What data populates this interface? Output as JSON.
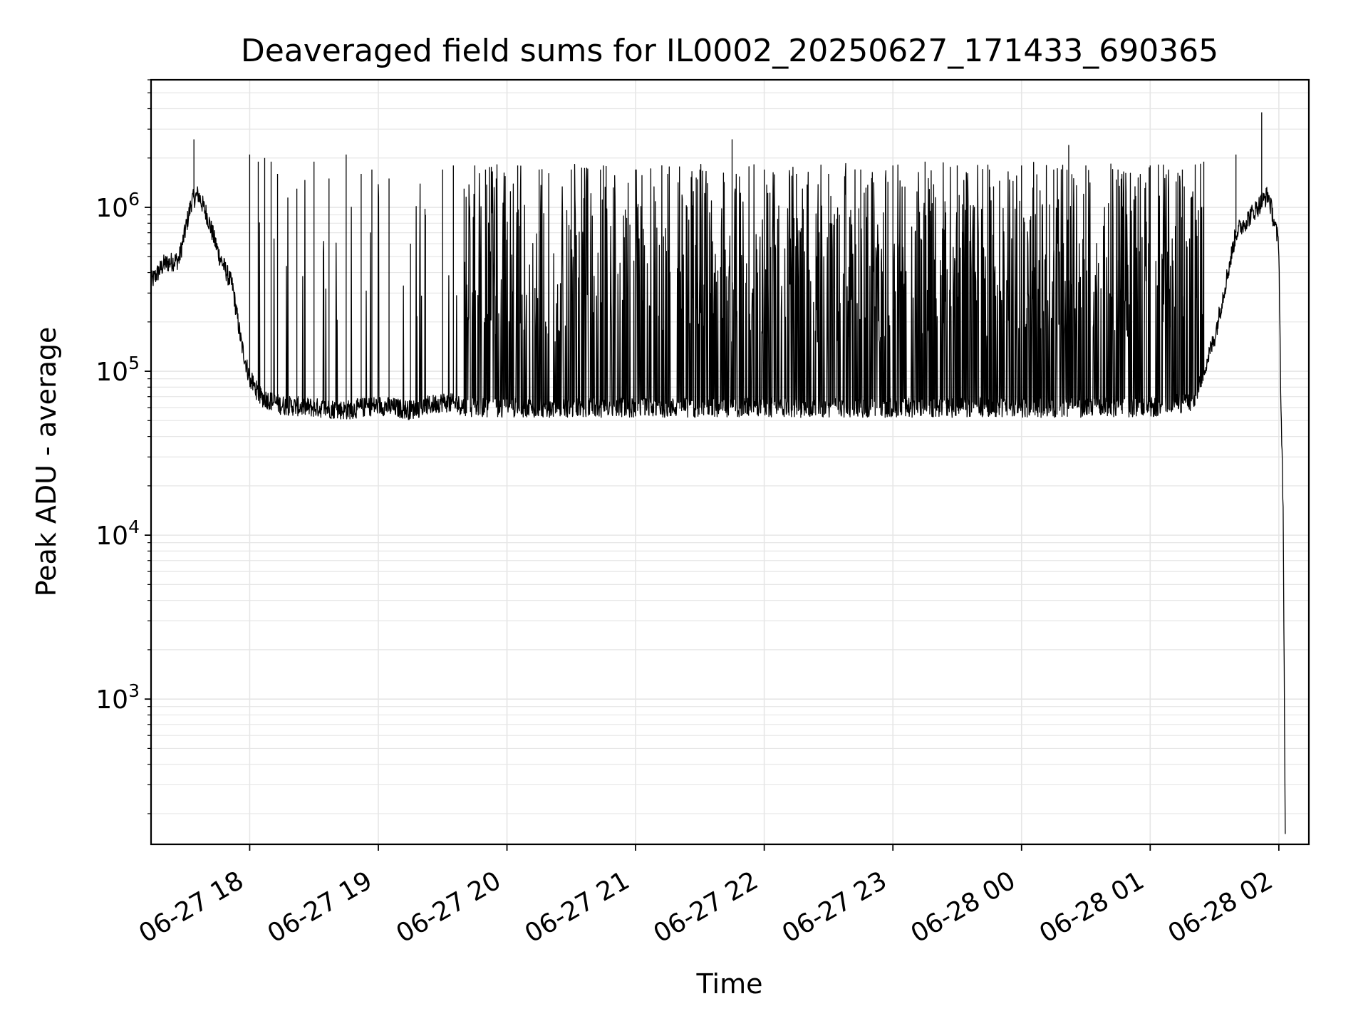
{
  "chart_data": {
    "type": "line",
    "title": "Deaveraged field sums for IL0002_20250627_171433_690365",
    "xlabel": "Time",
    "ylabel": "Peak ADU - average",
    "yscale": "log",
    "grid": true,
    "line_color": "#000000",
    "grid_color": "#e6e6e6",
    "xlim": [
      "2025-06-27 17:14",
      "2025-06-28 02:14"
    ],
    "ylim": [
      130,
      6000000
    ],
    "x_ticks": [
      {
        "value": "2025-06-27 18:00",
        "label": "06-27 18"
      },
      {
        "value": "2025-06-27 19:00",
        "label": "06-27 19"
      },
      {
        "value": "2025-06-27 20:00",
        "label": "06-27 20"
      },
      {
        "value": "2025-06-27 21:00",
        "label": "06-27 21"
      },
      {
        "value": "2025-06-27 22:00",
        "label": "06-27 22"
      },
      {
        "value": "2025-06-27 23:00",
        "label": "06-27 23"
      },
      {
        "value": "2025-06-28 00:00",
        "label": "06-28 00"
      },
      {
        "value": "2025-06-28 01:00",
        "label": "06-28 01"
      },
      {
        "value": "2025-06-28 02:00",
        "label": "06-28 02"
      }
    ],
    "y_ticks": [
      {
        "value": 1000,
        "base": "10",
        "exp": "3"
      },
      {
        "value": 10000,
        "base": "10",
        "exp": "4"
      },
      {
        "value": 100000,
        "base": "10",
        "exp": "5"
      },
      {
        "value": 1000000,
        "base": "10",
        "exp": "6"
      }
    ],
    "series": [
      {
        "x": [
          "2025-06-27 17:14",
          "2025-06-27 17:20",
          "2025-06-27 17:27",
          "2025-06-27 17:33",
          "2025-06-27 17:36",
          "2025-06-27 17:40",
          "2025-06-27 17:46",
          "2025-06-27 17:52",
          "2025-06-27 17:56",
          "2025-06-27 18:00",
          "2025-06-27 18:05",
          "2025-06-27 18:15",
          "2025-06-27 18:30",
          "2025-06-27 18:45",
          "2025-06-27 19:00",
          "2025-06-27 19:15",
          "2025-06-27 19:30",
          "2025-06-27 19:45",
          "2025-06-27 20:00",
          "2025-06-27 20:30",
          "2025-06-27 21:00",
          "2025-06-27 21:30",
          "2025-06-27 22:00",
          "2025-06-27 22:30",
          "2025-06-27 23:00",
          "2025-06-27 23:30",
          "2025-06-28 00:00",
          "2025-06-28 00:30",
          "2025-06-28 01:00",
          "2025-06-28 01:20",
          "2025-06-28 01:30",
          "2025-06-28 01:40",
          "2025-06-28 01:50",
          "2025-06-28 01:55",
          "2025-06-28 02:00",
          "2025-06-28 02:01",
          "2025-06-28 02:02",
          "2025-06-28 02:03"
        ],
        "y": [
          350000,
          450000,
          480000,
          1100000,
          1200000,
          900000,
          500000,
          330000,
          150000,
          90000,
          70000,
          62000,
          60000,
          58000,
          62000,
          58000,
          65000,
          60000,
          60000,
          60000,
          60000,
          60000,
          60000,
          60000,
          60000,
          60000,
          60000,
          60000,
          60000,
          65000,
          160000,
          700000,
          1000000,
          1200000,
          600000,
          60000,
          15000,
          150
        ],
        "spikes": [
          [
            "2025-06-27 17:34",
            2600000
          ],
          [
            "2025-06-27 18:00",
            2100000
          ],
          [
            "2025-06-27 18:04",
            1900000
          ],
          [
            "2025-06-27 18:07",
            2000000
          ],
          [
            "2025-06-27 18:10",
            1900000
          ],
          [
            "2025-06-27 18:13",
            1600000
          ],
          [
            "2025-06-27 18:22",
            1300000
          ],
          [
            "2025-06-27 18:30",
            1900000
          ],
          [
            "2025-06-27 18:37",
            1500000
          ],
          [
            "2025-06-27 18:45",
            2100000
          ],
          [
            "2025-06-27 18:52",
            1600000
          ],
          [
            "2025-06-27 18:57",
            1700000
          ],
          [
            "2025-06-27 19:05",
            1500000
          ],
          [
            "2025-06-27 19:15",
            600000
          ],
          [
            "2025-06-27 19:22",
            900000
          ],
          [
            "2025-06-27 19:30",
            1700000
          ],
          [
            "2025-06-27 19:35",
            1800000
          ],
          [
            "2025-06-27 19:40",
            1300000
          ],
          [
            "2025-06-27 19:45",
            1800000
          ],
          [
            "2025-06-27 19:50",
            1700000
          ],
          [
            "2025-06-27 19:55",
            1500000
          ],
          [
            "2025-06-27 20:05",
            1800000
          ],
          [
            "2025-06-27 20:15",
            1700000
          ],
          [
            "2025-06-27 20:30",
            1700000
          ],
          [
            "2025-06-27 20:45",
            1800000
          ],
          [
            "2025-06-27 21:00",
            1700000
          ],
          [
            "2025-06-27 21:15",
            1600000
          ],
          [
            "2025-06-27 21:30",
            1700000
          ],
          [
            "2025-06-27 21:45",
            2600000
          ],
          [
            "2025-06-27 22:00",
            1700000
          ],
          [
            "2025-06-27 22:15",
            1600000
          ],
          [
            "2025-06-27 22:30",
            1600000
          ],
          [
            "2025-06-27 22:45",
            1700000
          ],
          [
            "2025-06-27 23:00",
            1800000
          ],
          [
            "2025-06-27 23:15",
            1900000
          ],
          [
            "2025-06-27 23:30",
            1800000
          ],
          [
            "2025-06-27 23:45",
            1700000
          ],
          [
            "2025-06-28 00:00",
            1800000
          ],
          [
            "2025-06-28 00:15",
            1700000
          ],
          [
            "2025-06-28 00:22",
            2400000
          ],
          [
            "2025-06-28 00:30",
            1800000
          ],
          [
            "2025-06-28 00:45",
            1700000
          ],
          [
            "2025-06-28 01:00",
            1800000
          ],
          [
            "2025-06-28 01:15",
            1700000
          ],
          [
            "2025-06-28 01:25",
            1900000
          ],
          [
            "2025-06-28 01:40",
            2100000
          ],
          [
            "2025-06-28 01:52",
            3800000
          ]
        ]
      }
    ]
  }
}
